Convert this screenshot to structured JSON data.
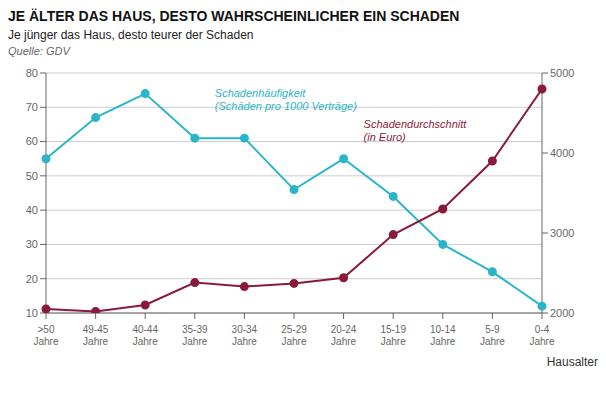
{
  "chart_data": {
    "type": "line",
    "title": "JE ÄLTER DAS HAUS, DESTO WAHRSCHEINLICHER EIN SCHADEN",
    "subtitle": "Je jünger das Haus, desto teurer der Schaden",
    "source": "Quelle: GDV",
    "xlabel": "Hausalter",
    "categories": [
      ">50\nJahre",
      "49-45\nJahre",
      "40-44\nJahre",
      "35-39\nJahre",
      "30-34\nJahre",
      "25-29\nJahre",
      "20-24\nJahre",
      "15-19\nJahre",
      "10-14\nJahre",
      "5-9\nJahre",
      "0-4\nJahre"
    ],
    "series": [
      {
        "name": "Schadenhäufigkeit",
        "color": "#2ab5c8",
        "marker": "o",
        "values": [
          55,
          67,
          74,
          61,
          61,
          46,
          55,
          44,
          30,
          22,
          12
        ]
      },
      {
        "name": "Schadendurchschnitt",
        "color": "#8b1a3a",
        "marker": "o",
        "axis": "y2",
        "values": [
          2050,
          2020,
          2100,
          2380,
          2330,
          2370,
          2440,
          2980,
          3300,
          3900,
          4800
        ]
      }
    ],
    "annotations": [
      "(Schäden pro 1000 Verträge)",
      "(in Euro)"
    ],
    "ylim": [
      10,
      80
    ],
    "yticks": [
      10,
      20,
      30,
      40,
      50,
      60,
      70,
      80
    ],
    "y2lim": [
      2000,
      5000
    ],
    "y2ticks": [
      2000,
      3000,
      4000,
      5000
    ],
    "grid": true
  }
}
